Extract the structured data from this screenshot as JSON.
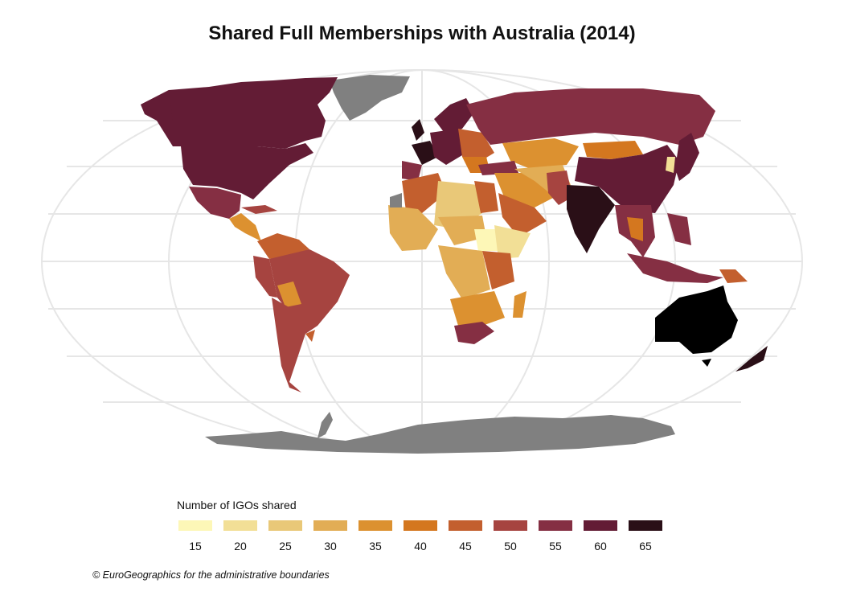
{
  "title": "Shared Full Memberships with Australia (2014)",
  "legend": {
    "title": "Number of IGOs shared",
    "items": [
      {
        "value": "15",
        "color": "#fdf7b7"
      },
      {
        "value": "20",
        "color": "#f2df96"
      },
      {
        "value": "25",
        "color": "#e9c878"
      },
      {
        "value": "30",
        "color": "#e2ad55"
      },
      {
        "value": "35",
        "color": "#dc9130"
      },
      {
        "value": "40",
        "color": "#d4771f"
      },
      {
        "value": "45",
        "color": "#c35f2e"
      },
      {
        "value": "50",
        "color": "#a64440"
      },
      {
        "value": "55",
        "color": "#852f43"
      },
      {
        "value": "60",
        "color": "#631c35"
      },
      {
        "value": "65",
        "color": "#2a0f17"
      }
    ]
  },
  "no_data_color": "#808080",
  "credit": "© EuroGeographics for the administrative boundaries"
}
